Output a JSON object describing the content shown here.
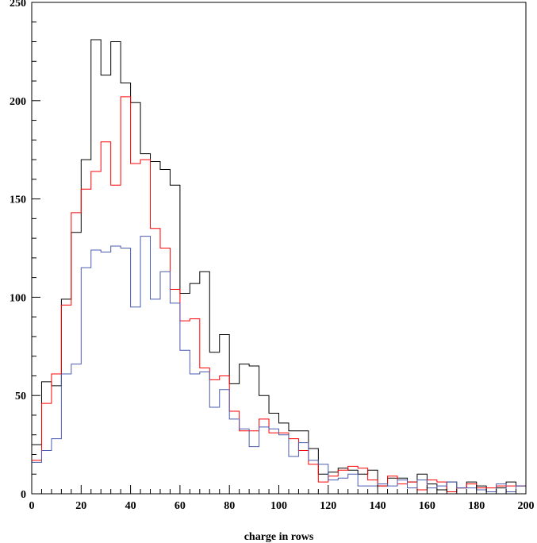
{
  "chart_data": {
    "type": "histogram",
    "title": "",
    "xlabel": "charge in rows",
    "ylabel": "",
    "xlim": [
      0,
      200
    ],
    "ylim": [
      0,
      250
    ],
    "bin_width": 4,
    "x_ticks": [
      0,
      20,
      40,
      60,
      80,
      100,
      120,
      140,
      160,
      180,
      200
    ],
    "y_ticks": [
      0,
      50,
      100,
      150,
      200,
      250
    ],
    "grid": false,
    "legend": "none",
    "series": [
      {
        "color": "#000000",
        "values": [
          25,
          57,
          55,
          99,
          133,
          170,
          231,
          213,
          230,
          209,
          199,
          173,
          169,
          165,
          157,
          102,
          107,
          113,
          72,
          81,
          56,
          66,
          65,
          50,
          41,
          36,
          32,
          32,
          23,
          10,
          11,
          13,
          12,
          10,
          12,
          4,
          8,
          8,
          6,
          10,
          5,
          2,
          6,
          3,
          6,
          4,
          1,
          3,
          6,
          4
        ]
      },
      {
        "color": "#ff0000",
        "values": [
          17,
          46,
          61,
          96,
          143,
          155,
          164,
          179,
          157,
          202,
          168,
          170,
          135,
          125,
          104,
          88,
          89,
          64,
          58,
          60,
          42,
          32,
          32,
          38,
          31,
          31,
          28,
          22,
          15,
          6,
          9,
          12,
          14,
          13,
          7,
          4,
          9,
          5,
          6,
          2,
          7,
          6,
          1,
          3,
          5,
          3,
          3,
          4,
          4,
          4
        ]
      },
      {
        "color": "#4a5bb0",
        "values": [
          16,
          22,
          28,
          61,
          66,
          115,
          124,
          123,
          126,
          125,
          95,
          131,
          99,
          113,
          97,
          73,
          61,
          62,
          44,
          53,
          38,
          33,
          24,
          34,
          33,
          30,
          19,
          26,
          17,
          15,
          7,
          8,
          10,
          4,
          4,
          5,
          4,
          7,
          3,
          7,
          3,
          4,
          6,
          3,
          3,
          2,
          1,
          5,
          1,
          4
        ]
      }
    ]
  }
}
